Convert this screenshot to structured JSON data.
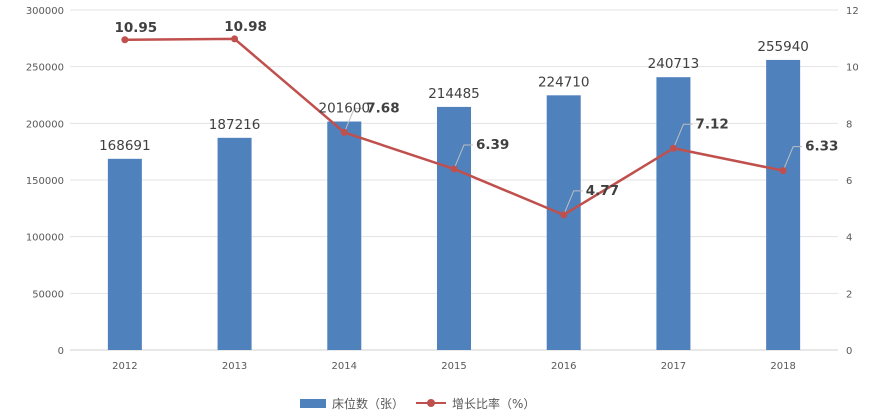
{
  "chart_data": {
    "type": "bar+line",
    "categories": [
      "2012",
      "2013",
      "2014",
      "2015",
      "2016",
      "2017",
      "2018"
    ],
    "series": [
      {
        "name": "床位数（张）",
        "type": "bar",
        "axis": "left",
        "values": [
          168691,
          187216,
          201600,
          214485,
          224710,
          240713,
          255940
        ],
        "labels": [
          "168691",
          "187216",
          "201600",
          "214485",
          "224710",
          "240713",
          "255940"
        ],
        "color": "#4f81bd"
      },
      {
        "name": "增长比率（%）",
        "type": "line",
        "axis": "right",
        "values": [
          10.95,
          10.98,
          7.68,
          6.39,
          4.77,
          7.12,
          6.33
        ],
        "labels": [
          "10.95",
          "10.98",
          "7.68",
          "6.39",
          "4.77",
          "7.12",
          "6.33"
        ],
        "color": "#c0504d"
      }
    ],
    "y_left": {
      "range": [
        0,
        300000
      ],
      "ticks": [
        0,
        50000,
        100000,
        150000,
        200000,
        250000,
        300000
      ],
      "tick_labels": [
        "0",
        "50000",
        "100000",
        "150000",
        "200000",
        "250000",
        "300000"
      ]
    },
    "y_right": {
      "range": [
        0,
        12
      ],
      "ticks": [
        0,
        2,
        4,
        6,
        8,
        10,
        12
      ],
      "tick_labels": [
        "0",
        "2",
        "4",
        "6",
        "8",
        "10",
        "12"
      ]
    },
    "grid": true,
    "legend": "bottom-center"
  }
}
